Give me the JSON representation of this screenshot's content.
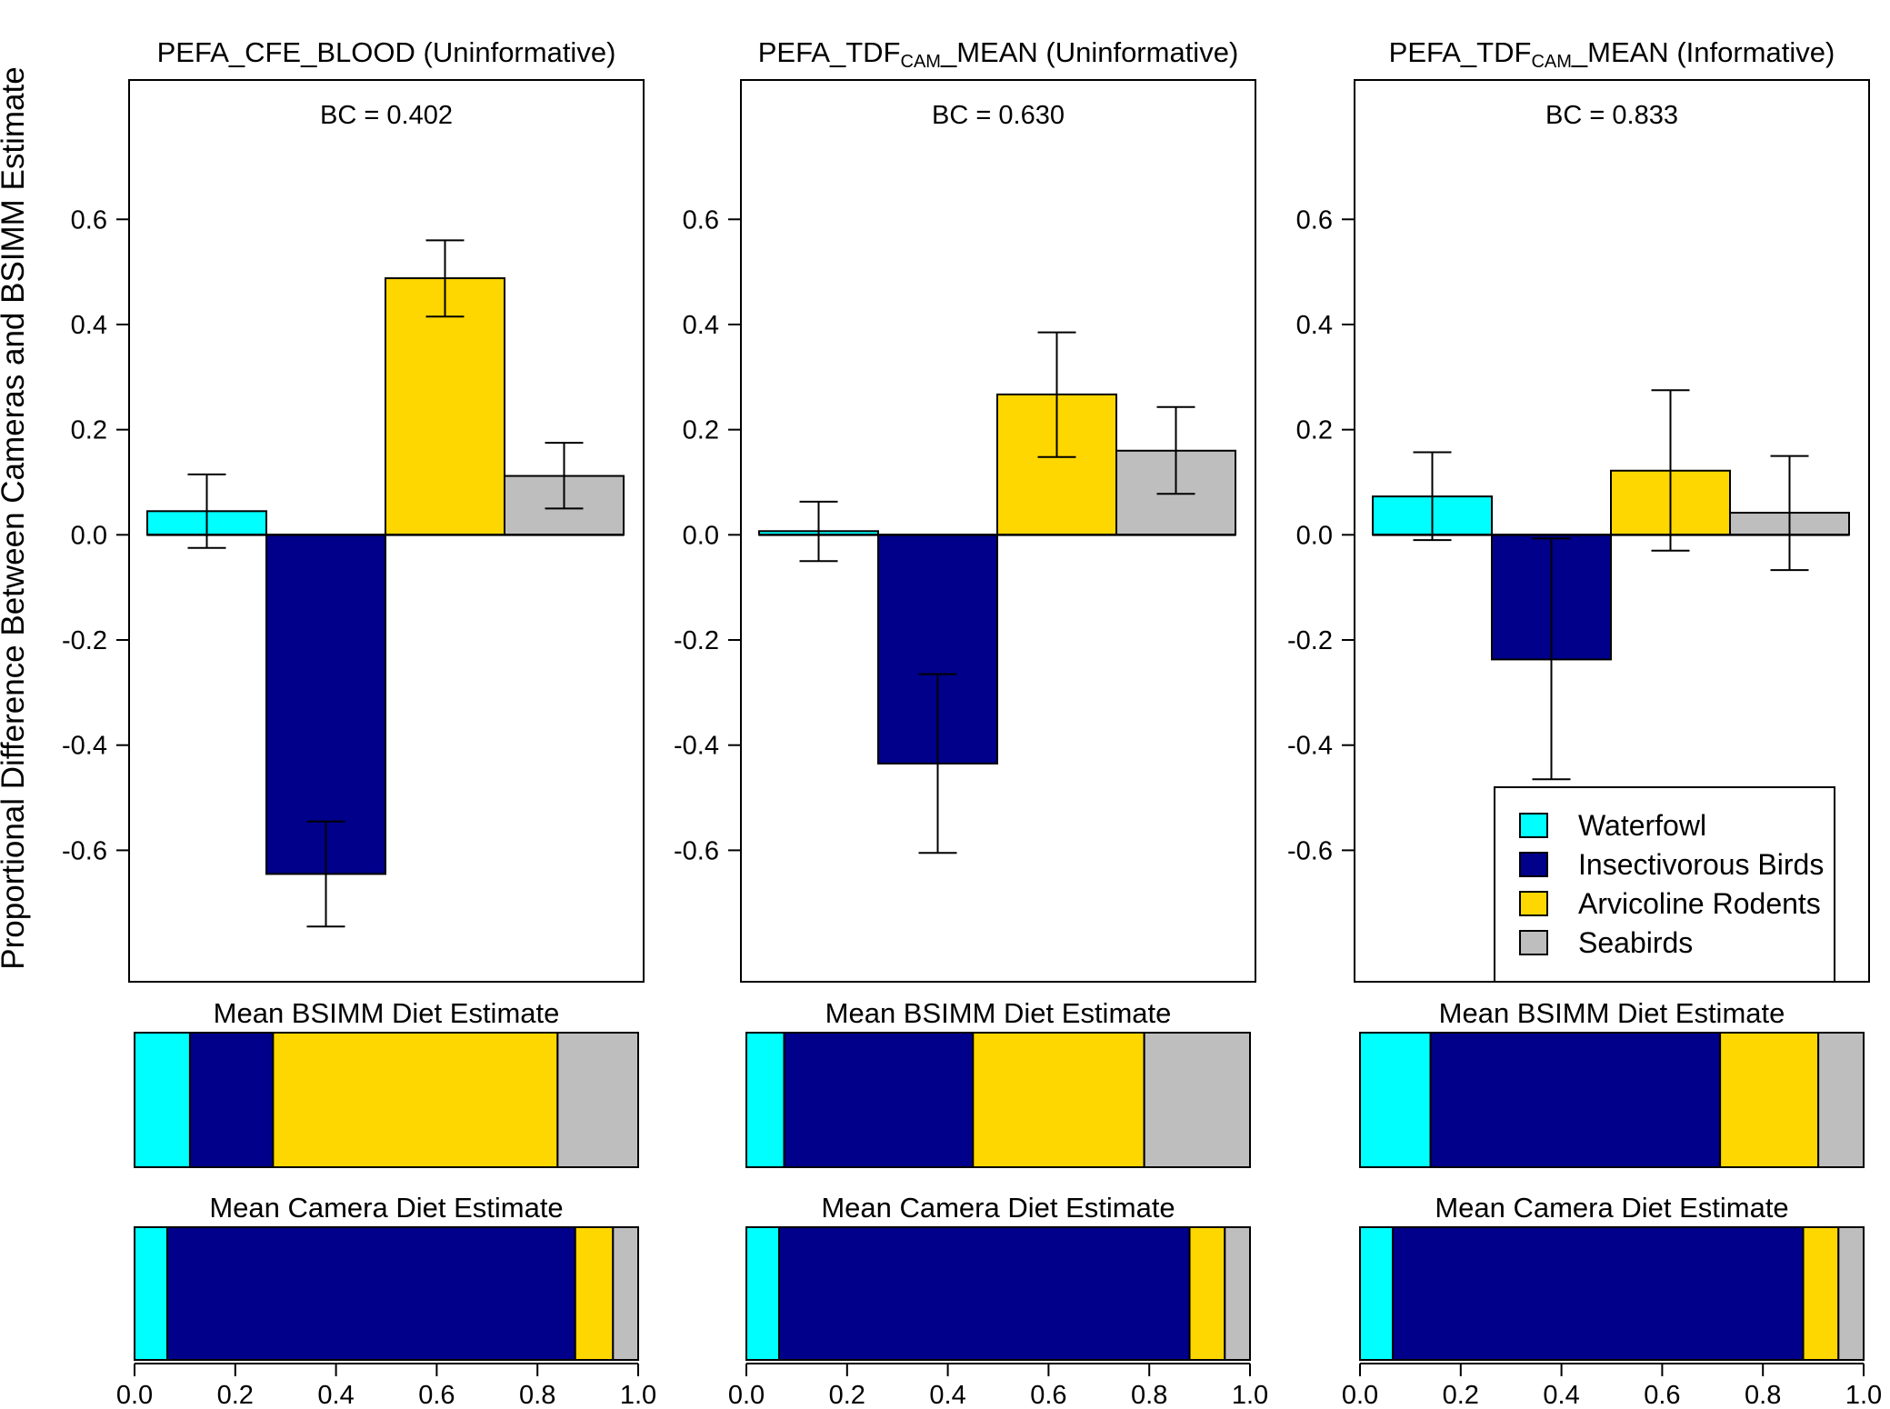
{
  "figure": {
    "ylabel": "Proportional Difference Between Cameras and BSIMM Estimate"
  },
  "colors": {
    "Waterfowl": "#00FFFF",
    "Insectivorous Birds": "#00008B",
    "Arvicoline Rodents": "#FFD700",
    "Seabirds": "#BEBEBE"
  },
  "legend": {
    "placement": "bottom-right of third panel",
    "entries": [
      "Waterfowl",
      "Insectivorous Birds",
      "Arvicoline Rodents",
      "Seabirds"
    ]
  },
  "stacked_titles": {
    "bsimm": "Mean BSIMM Diet Estimate",
    "camera": "Mean Camera Diet Estimate"
  },
  "chart_data": [
    {
      "type": "bar",
      "title_main": "PEFA_CFE_BLOOD",
      "title_sub": "",
      "title_rest": "",
      "title_tail": " (Uninformative)",
      "annotation": "BC = 0.402",
      "categories": [
        "Waterfowl",
        "Insectivorous Birds",
        "Arvicoline Rodents",
        "Seabirds"
      ],
      "values": [
        0.045,
        -0.645,
        0.488,
        0.112
      ],
      "error_low": [
        -0.025,
        -0.745,
        0.415,
        0.05
      ],
      "error_high": [
        0.115,
        -0.545,
        0.56,
        0.175
      ],
      "ylim": [
        -0.85,
        0.865
      ],
      "yticks": [
        "0.6",
        "0.4",
        "0.2",
        "0.0",
        "-0.2",
        "-0.4",
        "-0.6"
      ],
      "ytick_values": [
        0.6,
        0.4,
        0.2,
        0.0,
        -0.2,
        -0.4,
        -0.6
      ],
      "bsimm_diet": [
        0.11,
        0.165,
        0.565,
        0.16
      ],
      "camera_diet": [
        0.065,
        0.81,
        0.075,
        0.05
      ]
    },
    {
      "type": "bar",
      "title_main": "PEFA_TDF",
      "title_sub": "CAM",
      "title_rest": "_MEAN",
      "title_tail": " (Uninformative)",
      "annotation": "BC = 0.630",
      "categories": [
        "Waterfowl",
        "Insectivorous Birds",
        "Arvicoline Rodents",
        "Seabirds"
      ],
      "values": [
        0.007,
        -0.435,
        0.267,
        0.16
      ],
      "error_low": [
        -0.05,
        -0.605,
        0.148,
        0.078
      ],
      "error_high": [
        0.063,
        -0.265,
        0.385,
        0.243
      ],
      "ylim": [
        -0.85,
        0.865
      ],
      "yticks": [
        "0.6",
        "0.4",
        "0.2",
        "0.0",
        "-0.2",
        "-0.4",
        "-0.6"
      ],
      "ytick_values": [
        0.6,
        0.4,
        0.2,
        0.0,
        -0.2,
        -0.4,
        -0.6
      ],
      "bsimm_diet": [
        0.075,
        0.375,
        0.34,
        0.21
      ],
      "camera_diet": [
        0.065,
        0.815,
        0.07,
        0.05
      ]
    },
    {
      "type": "bar",
      "title_main": "PEFA_TDF",
      "title_sub": "CAM",
      "title_rest": "_MEAN",
      "title_tail": " (Informative)",
      "annotation": "BC = 0.833",
      "categories": [
        "Waterfowl",
        "Insectivorous Birds",
        "Arvicoline Rodents",
        "Seabirds"
      ],
      "values": [
        0.073,
        -0.237,
        0.122,
        0.042
      ],
      "error_low": [
        -0.01,
        -0.465,
        -0.03,
        -0.067
      ],
      "error_high": [
        0.157,
        -0.007,
        0.275,
        0.15
      ],
      "ylim": [
        -0.85,
        0.865
      ],
      "yticks": [
        "0.6",
        "0.4",
        "0.2",
        "0.0",
        "-0.2",
        "-0.4",
        "-0.6"
      ],
      "ytick_values": [
        0.6,
        0.4,
        0.2,
        0.0,
        -0.2,
        -0.4,
        -0.6
      ],
      "bsimm_diet": [
        0.14,
        0.575,
        0.195,
        0.09
      ],
      "camera_diet": [
        0.065,
        0.815,
        0.07,
        0.05
      ]
    }
  ],
  "x_axis": {
    "ticks": [
      "0.0",
      "0.2",
      "0.4",
      "0.6",
      "0.8",
      "1.0"
    ],
    "tick_values": [
      0,
      0.2,
      0.4,
      0.6,
      0.8,
      1.0
    ]
  }
}
